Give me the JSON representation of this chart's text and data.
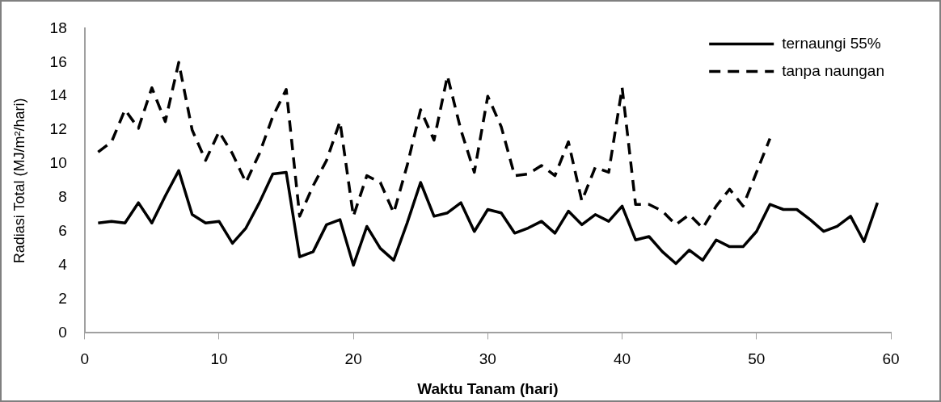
{
  "chart_data": {
    "type": "line",
    "xlabel": "Waktu Tanam (hari)",
    "ylabel": "Radiasi Total (MJ/m²/hari)",
    "xlim": [
      0,
      60
    ],
    "xticks": [
      0,
      10,
      20,
      30,
      40,
      50,
      60
    ],
    "ylim": [
      0,
      18
    ],
    "yticks": [
      0,
      2,
      4,
      6,
      8,
      10,
      12,
      14,
      16,
      18
    ],
    "grid": false,
    "legend": "top right",
    "marker": "none",
    "series": [
      {
        "name": "ternaungi 55%",
        "color": "#000000",
        "line_style": "solid",
        "x": [
          1,
          2,
          3,
          4,
          5,
          6,
          7,
          8,
          9,
          10,
          11,
          12,
          13,
          14,
          15,
          16,
          17,
          18,
          19,
          20,
          21,
          22,
          23,
          24,
          25,
          26,
          27,
          28,
          29,
          30,
          31,
          32,
          33,
          34,
          35,
          36,
          37,
          38,
          39,
          40,
          41,
          42,
          43,
          44,
          45,
          46,
          47,
          48,
          49,
          50,
          51,
          52,
          53,
          54,
          55,
          56,
          57,
          58,
          59
        ],
        "values": [
          6.5,
          6.6,
          6.5,
          7.7,
          6.5,
          8.1,
          9.6,
          7.0,
          6.5,
          6.6,
          5.3,
          6.2,
          7.7,
          9.4,
          9.5,
          4.5,
          4.8,
          6.4,
          6.7,
          4.0,
          6.3,
          5.0,
          4.3,
          6.5,
          8.9,
          6.9,
          7.1,
          7.7,
          6.0,
          7.3,
          7.1,
          5.9,
          6.2,
          6.6,
          5.9,
          7.2,
          6.4,
          7.0,
          6.6,
          7.5,
          5.5,
          5.7,
          4.8,
          4.1,
          4.9,
          4.3,
          5.5,
          5.1,
          5.1,
          6.0,
          7.6,
          7.3,
          7.3,
          6.7,
          6.0,
          6.3,
          6.9,
          5.4,
          7.7
        ]
      },
      {
        "name": "tanpa naungan",
        "color": "#000000",
        "line_style": "dashed",
        "x": [
          1,
          2,
          3,
          4,
          5,
          6,
          7,
          8,
          9,
          10,
          11,
          12,
          13,
          14,
          15,
          16,
          17,
          18,
          19,
          20,
          21,
          22,
          23,
          24,
          25,
          26,
          27,
          28,
          29,
          30,
          31,
          32,
          33,
          34,
          35,
          36,
          37,
          38,
          39,
          40,
          41,
          42,
          43,
          44,
          45,
          46,
          47,
          48,
          49,
          50,
          51
        ],
        "values": [
          10.7,
          11.3,
          13.2,
          12.1,
          14.5,
          12.5,
          16.0,
          12.0,
          10.2,
          11.9,
          10.6,
          8.9,
          10.6,
          12.8,
          14.4,
          6.9,
          8.7,
          10.2,
          12.5,
          6.9,
          9.3,
          8.9,
          7.1,
          9.9,
          13.2,
          11.4,
          15.2,
          12.0,
          9.5,
          14.0,
          12.2,
          9.3,
          9.4,
          9.9,
          9.3,
          11.3,
          7.8,
          9.8,
          9.5,
          14.5,
          7.6,
          7.6,
          7.2,
          6.4,
          7.0,
          6.2,
          7.5,
          8.5,
          7.5,
          9.5,
          11.5
        ]
      }
    ]
  }
}
